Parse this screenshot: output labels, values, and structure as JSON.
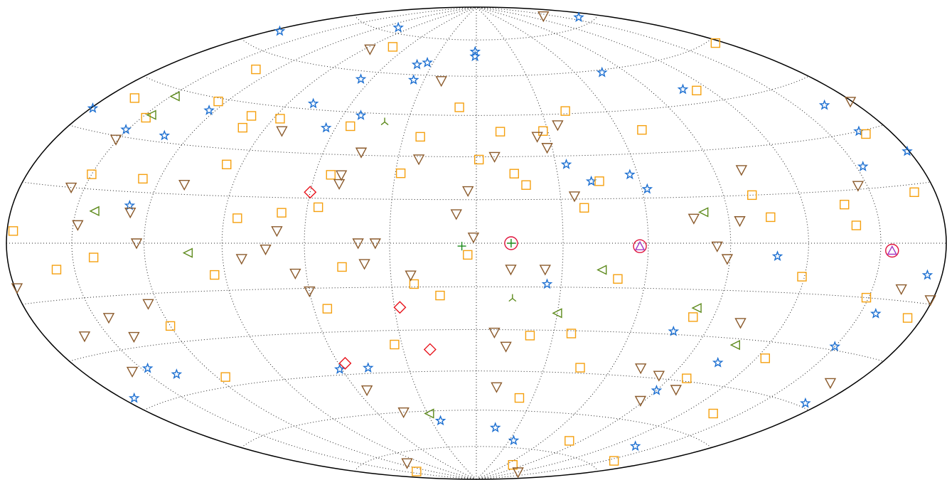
{
  "chart_data": {
    "type": "scatter",
    "projection": "hammer",
    "grid": true,
    "xlim": [
      -180,
      180
    ],
    "ylim": [
      -90,
      90
    ],
    "xticks": [
      -150,
      -120,
      -90,
      -60,
      -30,
      0,
      30,
      60,
      90,
      120,
      150
    ],
    "yticks": [
      -75,
      -60,
      -45,
      -30,
      -15,
      0,
      15,
      30,
      45,
      60,
      75
    ],
    "series": [
      {
        "marker": "star",
        "color": "#1c6fd1",
        "x": [
          -175,
          -104,
          -1,
          -1,
          161,
          -40,
          -34,
          -66,
          -36,
          76,
          107,
          164,
          -179,
          -151,
          -131,
          -123,
          -78,
          -64,
          -52,
          34,
          57,
          62,
          42,
          -128,
          153,
          179,
          165,
          108,
          173,
          157,
          25,
          77,
          150,
          105,
          90,
          172,
          136,
          34,
          14,
          -24,
          -48,
          -61,
          -137,
          -147,
          -174
        ],
        "values": [
          65,
          77,
          70,
          68,
          77,
          64,
          65,
          57,
          58,
          59,
          50,
          38,
          35,
          32,
          32,
          41,
          47,
          39,
          44,
          27,
          23,
          18,
          21,
          11,
          21,
          23,
          30,
          -4,
          -8,
          -19,
          -14,
          -29,
          -29,
          -38,
          -49,
          -44,
          -67,
          -72,
          -67,
          -64,
          -43,
          -43,
          -39,
          -36,
          -42
        ]
      },
      {
        "marker": "square",
        "color": "#f5a00f",
        "x": [
          -72,
          -131,
          -166,
          -124,
          -101,
          -87,
          -100,
          -148,
          -54,
          -23,
          -8,
          10,
          1,
          41,
          70,
          28,
          113,
          175,
          167,
          -96,
          -150,
          -127,
          -54,
          -28,
          14,
          18,
          45,
          101,
          106,
          137,
          170,
          140,
          38,
          -56,
          -69,
          -85,
          -177,
          -141,
          -158,
          -94,
          -47,
          -3,
          -22,
          -13,
          -55,
          -120,
          50,
          119,
          149,
          173,
          82,
          21,
          37,
          -33,
          46,
          124,
          98,
          23,
          -116,
          136,
          81,
          156,
          72,
          -139
        ],
        "values": [
          70,
          55,
          40,
          44,
          41,
          41,
          37,
          36,
          40,
          37,
          48,
          39,
          29,
          46,
          38,
          39,
          49,
          59,
          29,
          25,
          19,
          19,
          23,
          24,
          24,
          20,
          21,
          15,
          8,
          11,
          13,
          5,
          12,
          12,
          10,
          8,
          3,
          -4,
          -7,
          -10,
          -8,
          -4,
          -14,
          -18,
          -22,
          -25,
          -12,
          -10,
          -15,
          -19,
          -24,
          -32,
          -31,
          -35,
          -43,
          -35,
          -44,
          -55,
          -42,
          -53,
          -70,
          -72,
          -82,
          -82
        ]
      },
      {
        "marker": "triangle-down",
        "color": "#8b5a2b",
        "x": [
          139,
          -86,
          -20,
          -151,
          -82,
          -45,
          -22,
          7,
          25,
          35,
          28,
          179,
          -109,
          -50,
          -50,
          -3,
          35,
          101,
          146,
          -156,
          -127,
          -148,
          -123,
          -70,
          -74,
          -83,
          -64,
          -39,
          -41,
          -35,
          -7,
          -1,
          12,
          24,
          85,
          89,
          77,
          94,
          -179,
          -60,
          -23,
          -124,
          -144,
          -161,
          -139,
          -156,
          -55,
          7,
          12,
          73,
          99,
          88,
          102,
          163,
          168,
          10,
          -44,
          -109,
          121,
          179,
          84
        ],
        "values": [
          81,
          68,
          58,
          29,
          37,
          31,
          29,
          30,
          37,
          41,
          33,
          37,
          18,
          23,
          20,
          18,
          16,
          23,
          16,
          15,
          9,
          5,
          0,
          4,
          -2,
          -5,
          -10,
          -7,
          0,
          0,
          10,
          2,
          -9,
          -9,
          -1,
          -5,
          8,
          7,
          -11,
          -16,
          -11,
          -18,
          -21,
          -25,
          -27,
          -36,
          -51,
          -31,
          -36,
          -42,
          -48,
          -53,
          -25,
          -12,
          -38,
          -51,
          -60,
          -79,
          -84,
          -14,
          -44
        ]
      },
      {
        "marker": "triangle-left",
        "color": "#5d8a1c",
        "x": [
          -148,
          -147,
          -142,
          -103,
          44,
          81,
          30,
          82,
          106,
          -29
        ],
        "values": [
          43,
          37,
          9,
          -3,
          -9,
          10,
          -24,
          -21,
          -32,
          -61
        ]
      },
      {
        "marker": "diamond",
        "color": "#e8141c",
        "x": [
          -60,
          -28,
          -19,
          -57
        ],
        "values": [
          17,
          -22,
          -37,
          -41
        ]
      },
      {
        "marker": "tri-down",
        "color": "#5d8a1c",
        "x": [
          -40,
          13
        ],
        "values": [
          42,
          -19
        ]
      },
      {
        "marker": "plus",
        "color": "#1a8a1a",
        "x": [
          12,
          -5
        ],
        "values": [
          0,
          -1
        ]
      },
      {
        "marker": "circle",
        "color": "#e0143c",
        "x": [
          12,
          57,
          155
        ],
        "values": [
          0,
          -1,
          -2
        ]
      },
      {
        "marker": "triangle-up",
        "color": "#a43ac4",
        "x": [
          57,
          155
        ],
        "values": [
          -1,
          -2
        ]
      }
    ]
  }
}
